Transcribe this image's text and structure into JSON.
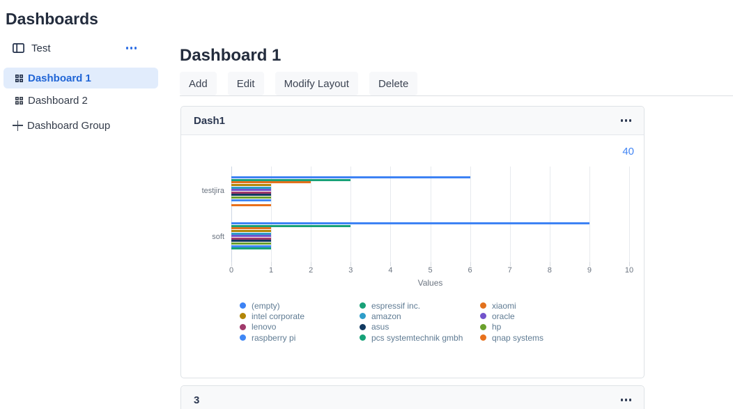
{
  "sidebar": {
    "title": "Dashboards",
    "group": {
      "label": "Test"
    },
    "items": [
      {
        "label": "Dashboard 1",
        "selected": true
      },
      {
        "label": "Dashboard 2",
        "selected": false
      }
    ],
    "add_group_label": "Dashboard Group"
  },
  "main": {
    "title": "Dashboard 1",
    "toolbar": [
      {
        "label": "Add"
      },
      {
        "label": "Edit"
      },
      {
        "label": "Modify Layout"
      },
      {
        "label": "Delete"
      }
    ],
    "widgets": [
      {
        "title": "Dash1"
      },
      {
        "title": "3"
      }
    ]
  },
  "icons": {
    "sidebar_group": "layout-columns-icon",
    "dashboard_item": "grid-icon",
    "add_group": "plus-icon",
    "card_menu": "ellipsis-icon",
    "legend_marker": "circle-dot-icon"
  },
  "colors": {
    "accent_blue": "#2f6fe4",
    "selected_item_bg": "#e1ecfc",
    "selected_item_text": "#2065d6",
    "card_header_bg": "#f8f9fa",
    "border": "#dee2e6",
    "corner_value_text": "#4285f4",
    "axis_text": "#6b7480",
    "legend_text": "#5f7b93"
  },
  "chart_data": {
    "type": "bar",
    "orientation": "horizontal",
    "title": "",
    "categories": [
      "testjira",
      "soft"
    ],
    "series": [
      {
        "name": "(empty)",
        "color": "#3d82f4",
        "values": [
          6,
          9
        ]
      },
      {
        "name": "intel corporate",
        "color": "#b28507",
        "values": [
          1,
          1
        ]
      },
      {
        "name": "lenovo",
        "color": "#a03a6b",
        "values": [
          1,
          1
        ]
      },
      {
        "name": "raspberry pi",
        "color": "#3f87f5",
        "values": [
          1,
          1
        ]
      },
      {
        "name": "espressif inc.",
        "color": "#18a177",
        "values": [
          3,
          3
        ]
      },
      {
        "name": "amazon",
        "color": "#2e9dc9",
        "values": [
          1,
          1
        ]
      },
      {
        "name": "asus",
        "color": "#123a61",
        "values": [
          1,
          1
        ]
      },
      {
        "name": "pcs systemtechnik gmbh",
        "color": "#16a278",
        "values": [
          0,
          1
        ]
      },
      {
        "name": "xiaomi",
        "color": "#e2711d",
        "values": [
          2,
          1
        ]
      },
      {
        "name": "oracle",
        "color": "#7253cb",
        "values": [
          1,
          1
        ]
      },
      {
        "name": "hp",
        "color": "#6aa02c",
        "values": [
          1,
          1
        ]
      },
      {
        "name": "qnap systems",
        "color": "#e8711c",
        "values": [
          1,
          0
        ]
      }
    ],
    "bar_order": [
      "(empty)",
      "espressif inc.",
      "xiaomi",
      "intel corporate",
      "amazon",
      "oracle",
      "lenovo",
      "asus",
      "hp",
      "raspberry pi",
      "pcs systemtechnik gmbh",
      "qnap systems"
    ],
    "xlabel": "Values",
    "x_ticks": [
      0,
      1,
      2,
      3,
      4,
      5,
      6,
      7,
      8,
      9,
      10
    ],
    "xlim": [
      0,
      10
    ],
    "corner_value": "40",
    "grid": true,
    "legend_position": "bottom",
    "legend_columns": 3
  }
}
